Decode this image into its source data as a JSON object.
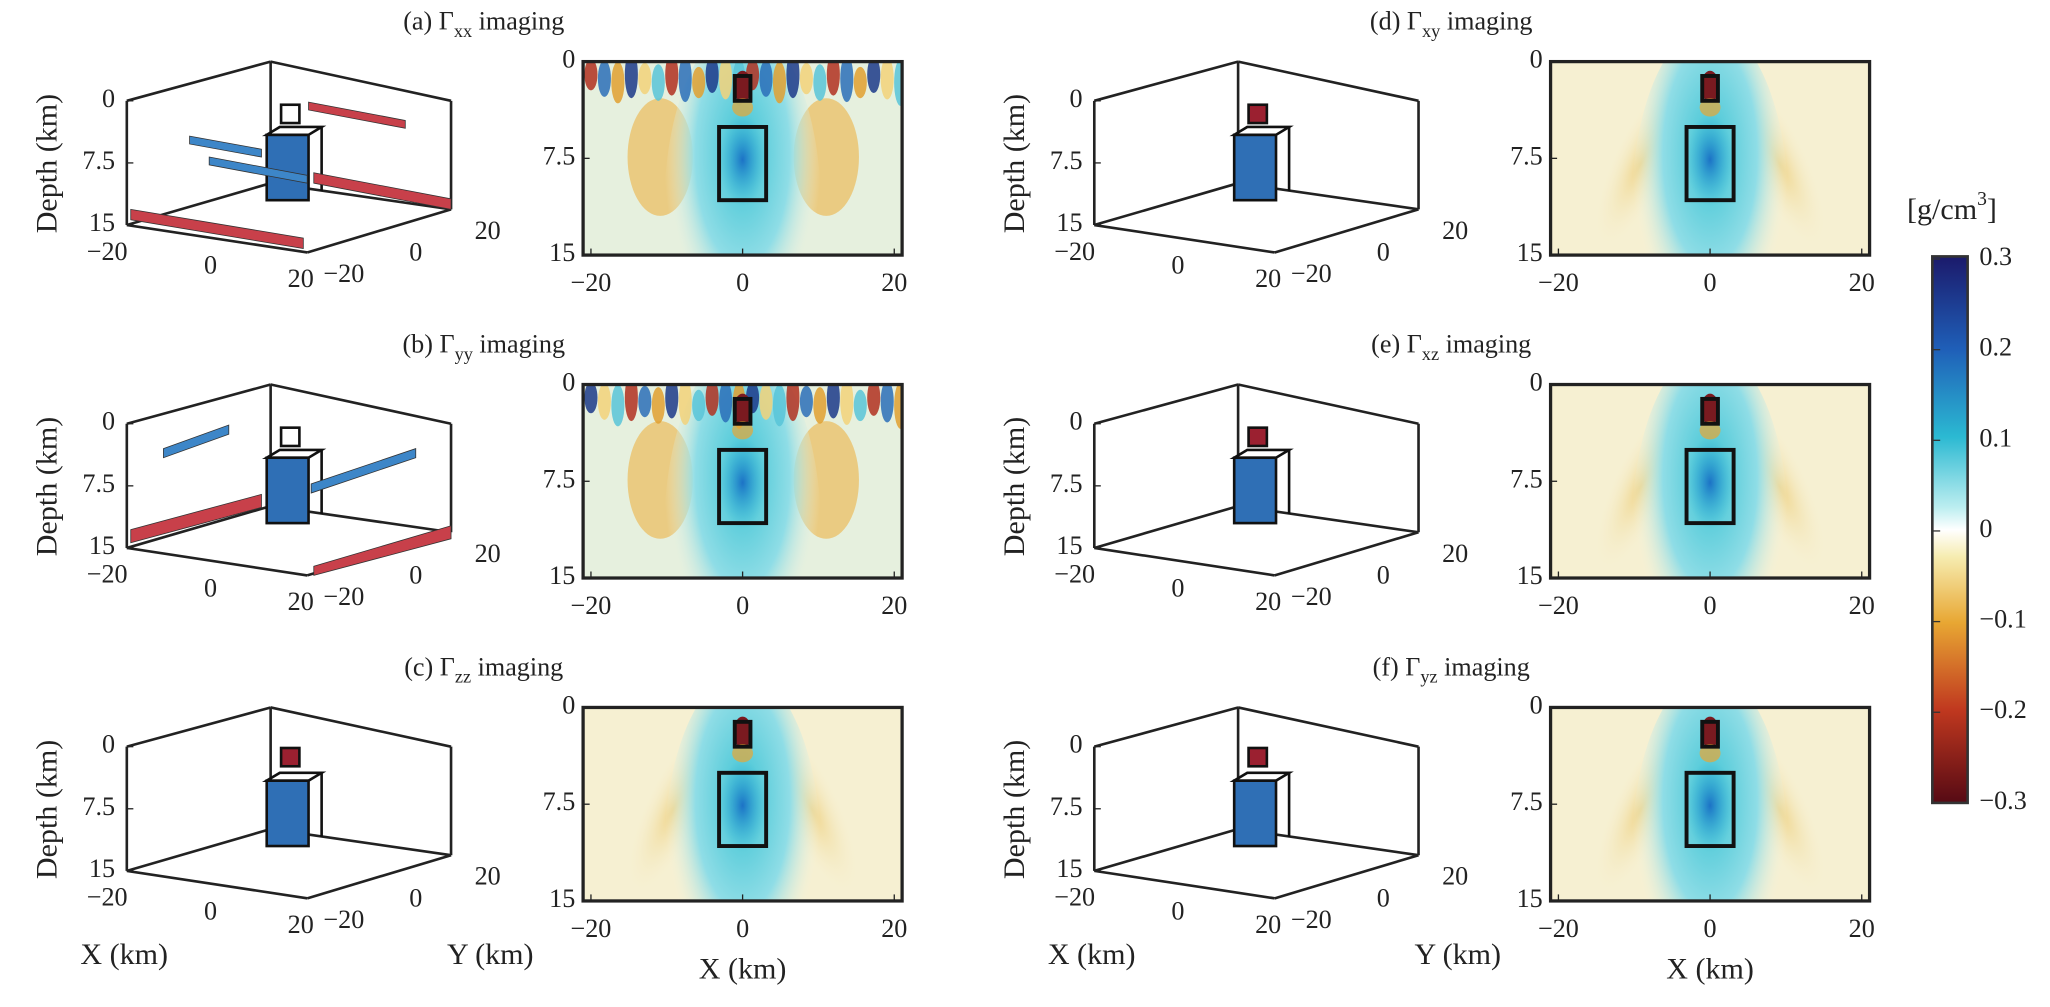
{
  "panels": [
    {
      "label": "(a)",
      "symbol": "Γ",
      "sub": "xx",
      "text": "imaging"
    },
    {
      "label": "(b)",
      "symbol": "Γ",
      "sub": "yy",
      "text": "imaging"
    },
    {
      "label": "(c)",
      "symbol": "Γ",
      "sub": "zz",
      "text": "imaging"
    },
    {
      "label": "(d)",
      "symbol": "Γ",
      "sub": "xy",
      "text": "imaging"
    },
    {
      "label": "(e)",
      "symbol": "Γ",
      "sub": "xz",
      "text": "imaging"
    },
    {
      "label": "(f)",
      "symbol": "Γ",
      "sub": "yz",
      "text": "imaging"
    }
  ],
  "depth_label": "Depth (km)",
  "x_label": "X (km)",
  "y_label": "Y (km)",
  "depth_ticks": [
    0,
    7.5,
    15
  ],
  "xy_ticks": [
    {
      "value": -20,
      "label": "−20"
    },
    0,
    20
  ],
  "colorbar": {
    "unit": "[g/cm",
    "unit_sup": "3",
    "unit_end": "]",
    "ticks": [
      0.3,
      0.2,
      0.1,
      0,
      {
        "value": -0.1,
        "label": "−0.1"
      },
      {
        "value": -0.2,
        "label": "−0.2"
      },
      {
        "value": -0.3,
        "label": "−0.3"
      }
    ]
  }
}
